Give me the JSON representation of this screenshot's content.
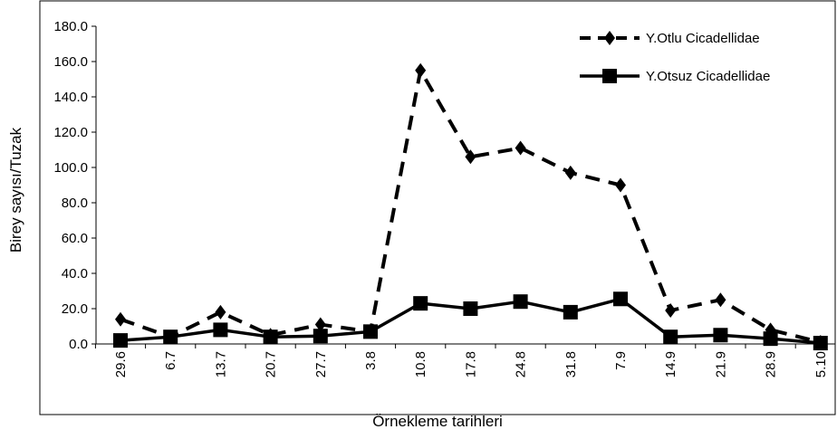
{
  "chart_data": {
    "type": "line",
    "x": [
      "29.6",
      "6.7",
      "13.7",
      "20.7",
      "27.7",
      "3.8",
      "10.8",
      "17.8",
      "24.8",
      "31.8",
      "7.9",
      "14.9",
      "21.9",
      "28.9",
      "5.10"
    ],
    "series": [
      {
        "name": "Y.Otlu Cicadellidae",
        "style": "dashed",
        "marker": "diamond",
        "color": "#000000",
        "values": [
          14.0,
          4.0,
          18.0,
          5.0,
          11.0,
          7.0,
          155.0,
          106.0,
          111.0,
          97.0,
          90.0,
          19.0,
          25.0,
          8.0,
          1.0
        ]
      },
      {
        "name": "Y.Otsuz Cicadellidae",
        "style": "solid",
        "marker": "square",
        "color": "#000000",
        "values": [
          2.0,
          4.0,
          8.0,
          4.0,
          4.5,
          7.0,
          23.0,
          20.0,
          24.0,
          18.0,
          25.5,
          4.0,
          5.0,
          3.0,
          0.5
        ]
      }
    ],
    "yticks": [
      "0.0",
      "20.0",
      "40.0",
      "60.0",
      "80.0",
      "100.0",
      "120.0",
      "140.0",
      "160.0",
      "180.0"
    ],
    "ylim": [
      0,
      180
    ],
    "xlabel": "Örnekleme tarihleri",
    "ylabel": "Birey sayısı/Tuzak",
    "legend": "top-right",
    "grid": false
  }
}
